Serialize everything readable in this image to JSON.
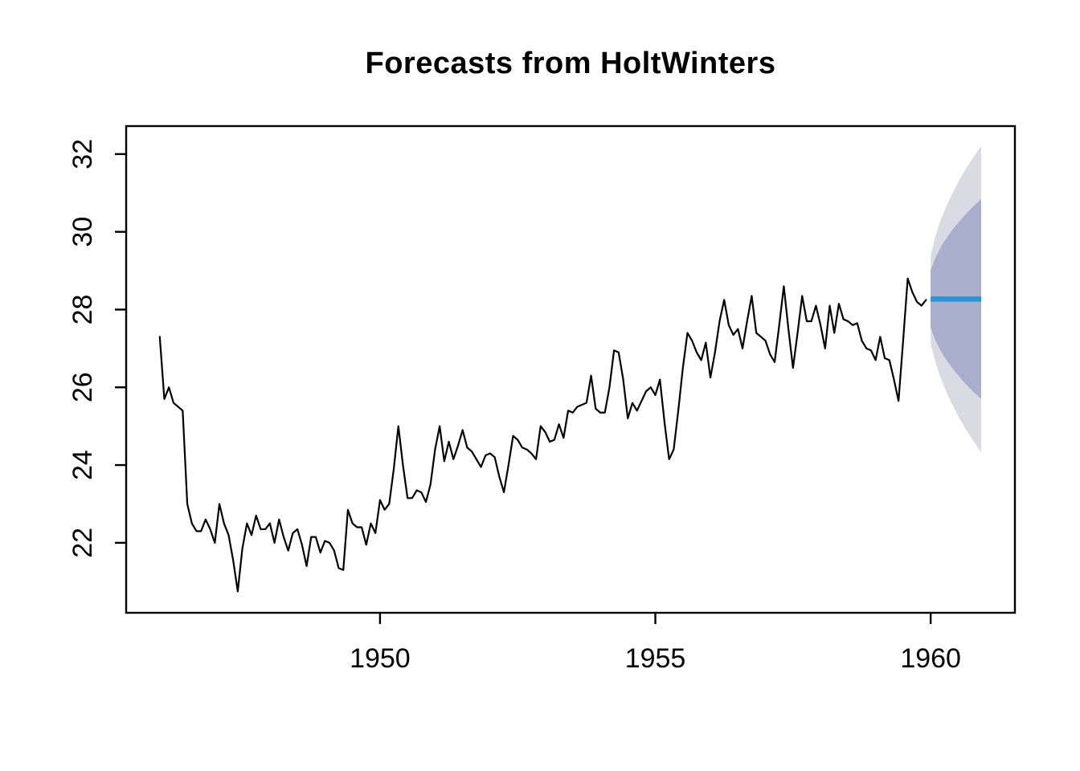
{
  "title": "Forecasts from HoltWinters",
  "colors": {
    "background": "#ffffff",
    "series_line": "#000000",
    "forecast_line": "#2196d9",
    "band_80": "#a8aecb",
    "band_95": "#dadae3",
    "axis": "#000000"
  },
  "axes": {
    "x": {
      "tick_values": [
        1950,
        1955,
        1960
      ],
      "tick_labels": [
        "1950",
        "1955",
        "1960"
      ]
    },
    "y": {
      "tick_values": [
        22,
        24,
        26,
        28,
        30,
        32
      ],
      "tick_labels": [
        "22",
        "24",
        "26",
        "28",
        "30",
        "32"
      ]
    }
  },
  "chart_data": {
    "type": "line",
    "title": "Forecasts from HoltWinters",
    "xlabel": "",
    "ylabel": "",
    "xlim": [
      1945.39,
      1961.53
    ],
    "ylim": [
      20.2,
      32.72
    ],
    "grid": false,
    "legend": "none",
    "observed_series": {
      "name": "observed",
      "start_year": 1946,
      "frequency": 12,
      "values": [
        27.3,
        25.7,
        26.0,
        25.6,
        25.5,
        25.4,
        23.0,
        22.5,
        22.3,
        22.3,
        22.6,
        22.35,
        22.0,
        23.0,
        22.5,
        22.2,
        21.55,
        20.75,
        21.85,
        22.5,
        22.2,
        22.7,
        22.35,
        22.35,
        22.5,
        22.0,
        22.6,
        22.15,
        21.8,
        22.25,
        22.35,
        21.95,
        21.4,
        22.15,
        22.15,
        21.75,
        22.05,
        22.0,
        21.8,
        21.35,
        21.3,
        22.85,
        22.5,
        22.4,
        22.4,
        21.95,
        22.5,
        22.25,
        23.1,
        22.85,
        23.0,
        23.9,
        25.0,
        24.0,
        23.15,
        23.15,
        23.35,
        23.3,
        23.05,
        23.5,
        24.4,
        25.0,
        24.1,
        24.6,
        24.15,
        24.5,
        24.9,
        24.45,
        24.35,
        24.15,
        23.95,
        24.25,
        24.3,
        24.2,
        23.7,
        23.3,
        24.0,
        24.75,
        24.65,
        24.45,
        24.4,
        24.3,
        24.15,
        25.0,
        24.85,
        24.6,
        24.65,
        25.05,
        24.7,
        25.4,
        25.35,
        25.5,
        25.55,
        25.6,
        26.3,
        25.45,
        25.35,
        25.35,
        26.0,
        26.95,
        26.9,
        26.2,
        25.2,
        25.6,
        25.4,
        25.65,
        25.9,
        26.0,
        25.8,
        26.2,
        25.1,
        24.15,
        24.4,
        25.4,
        26.5,
        27.4,
        27.2,
        26.9,
        26.7,
        27.15,
        26.25,
        26.9,
        27.7,
        28.25,
        27.6,
        27.35,
        27.5,
        27.0,
        27.7,
        28.35,
        27.4,
        27.3,
        27.2,
        26.85,
        26.65,
        27.6,
        28.6,
        27.5,
        26.5,
        27.4,
        28.35,
        27.7,
        27.7,
        28.1,
        27.6,
        27.0,
        28.1,
        27.4,
        28.15,
        27.75,
        27.7,
        27.6,
        27.65,
        27.2,
        27.0,
        26.95,
        26.7,
        27.3,
        26.75,
        26.7,
        26.2,
        25.65,
        27.2,
        28.8,
        28.45,
        28.2,
        28.1,
        28.25
      ]
    },
    "forecast": {
      "name": "HoltWinters forecast",
      "start_year": 1960,
      "frequency": 12,
      "mean": [
        28.27,
        28.27,
        28.27,
        28.27,
        28.27,
        28.27,
        28.27,
        28.27,
        28.27,
        28.27,
        28.27,
        28.27
      ],
      "lo80": [
        27.53,
        27.22,
        26.98,
        26.78,
        26.61,
        26.45,
        26.31,
        26.17,
        26.04,
        25.92,
        25.81,
        25.7
      ],
      "hi80": [
        29.01,
        29.32,
        29.56,
        29.76,
        29.93,
        30.09,
        30.23,
        30.37,
        30.5,
        30.62,
        30.73,
        30.84
      ],
      "lo95": [
        27.13,
        26.66,
        26.3,
        26.0,
        25.73,
        25.49,
        25.26,
        25.05,
        24.86,
        24.68,
        24.5,
        24.33
      ],
      "hi95": [
        29.41,
        29.88,
        30.24,
        30.54,
        30.81,
        31.05,
        31.28,
        31.49,
        31.68,
        31.86,
        32.04,
        32.21
      ]
    }
  }
}
